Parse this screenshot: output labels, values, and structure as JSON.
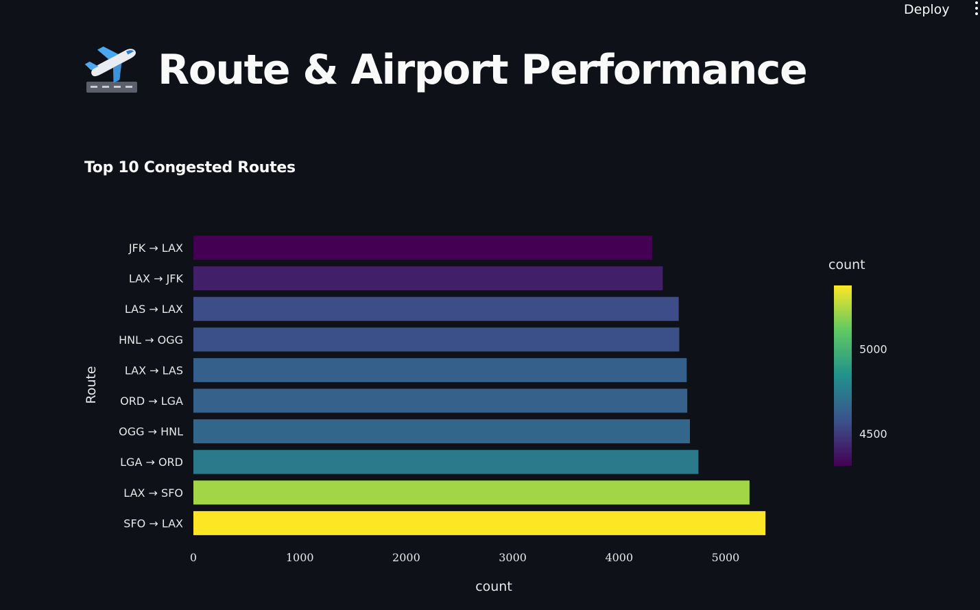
{
  "header": {
    "deploy_label": "Deploy"
  },
  "page": {
    "title": "Route & Airport Performance",
    "title_icon": "airplane-departure-icon"
  },
  "section": {
    "subtitle": "Top 10 Congested Routes"
  },
  "chart_data": {
    "type": "bar",
    "orientation": "horizontal",
    "categories": [
      "JFK → LAX",
      "LAX → JFK",
      "LAS → LAX",
      "HNL → OGG",
      "LAX → LAS",
      "ORD → LGA",
      "OGG → HNL",
      "LGA → ORD",
      "LAX → SFO",
      "SFO → LAX"
    ],
    "values": [
      4310,
      4410,
      4560,
      4565,
      4635,
      4640,
      4665,
      4745,
      5225,
      5375
    ],
    "xlabel": "count",
    "ylabel": "Route",
    "xlim": [
      0,
      5500
    ],
    "xticks": [
      "0",
      "1000",
      "2000",
      "3000",
      "4000",
      "5000"
    ],
    "xtick_values": [
      0,
      1000,
      2000,
      3000,
      4000,
      5000
    ],
    "colorscale": "viridis",
    "colorbar": {
      "title": "count",
      "range": [
        4310,
        5375
      ],
      "ticks": [
        "5000",
        "4500"
      ],
      "tick_values": [
        5000,
        4500
      ]
    },
    "grid": false
  }
}
